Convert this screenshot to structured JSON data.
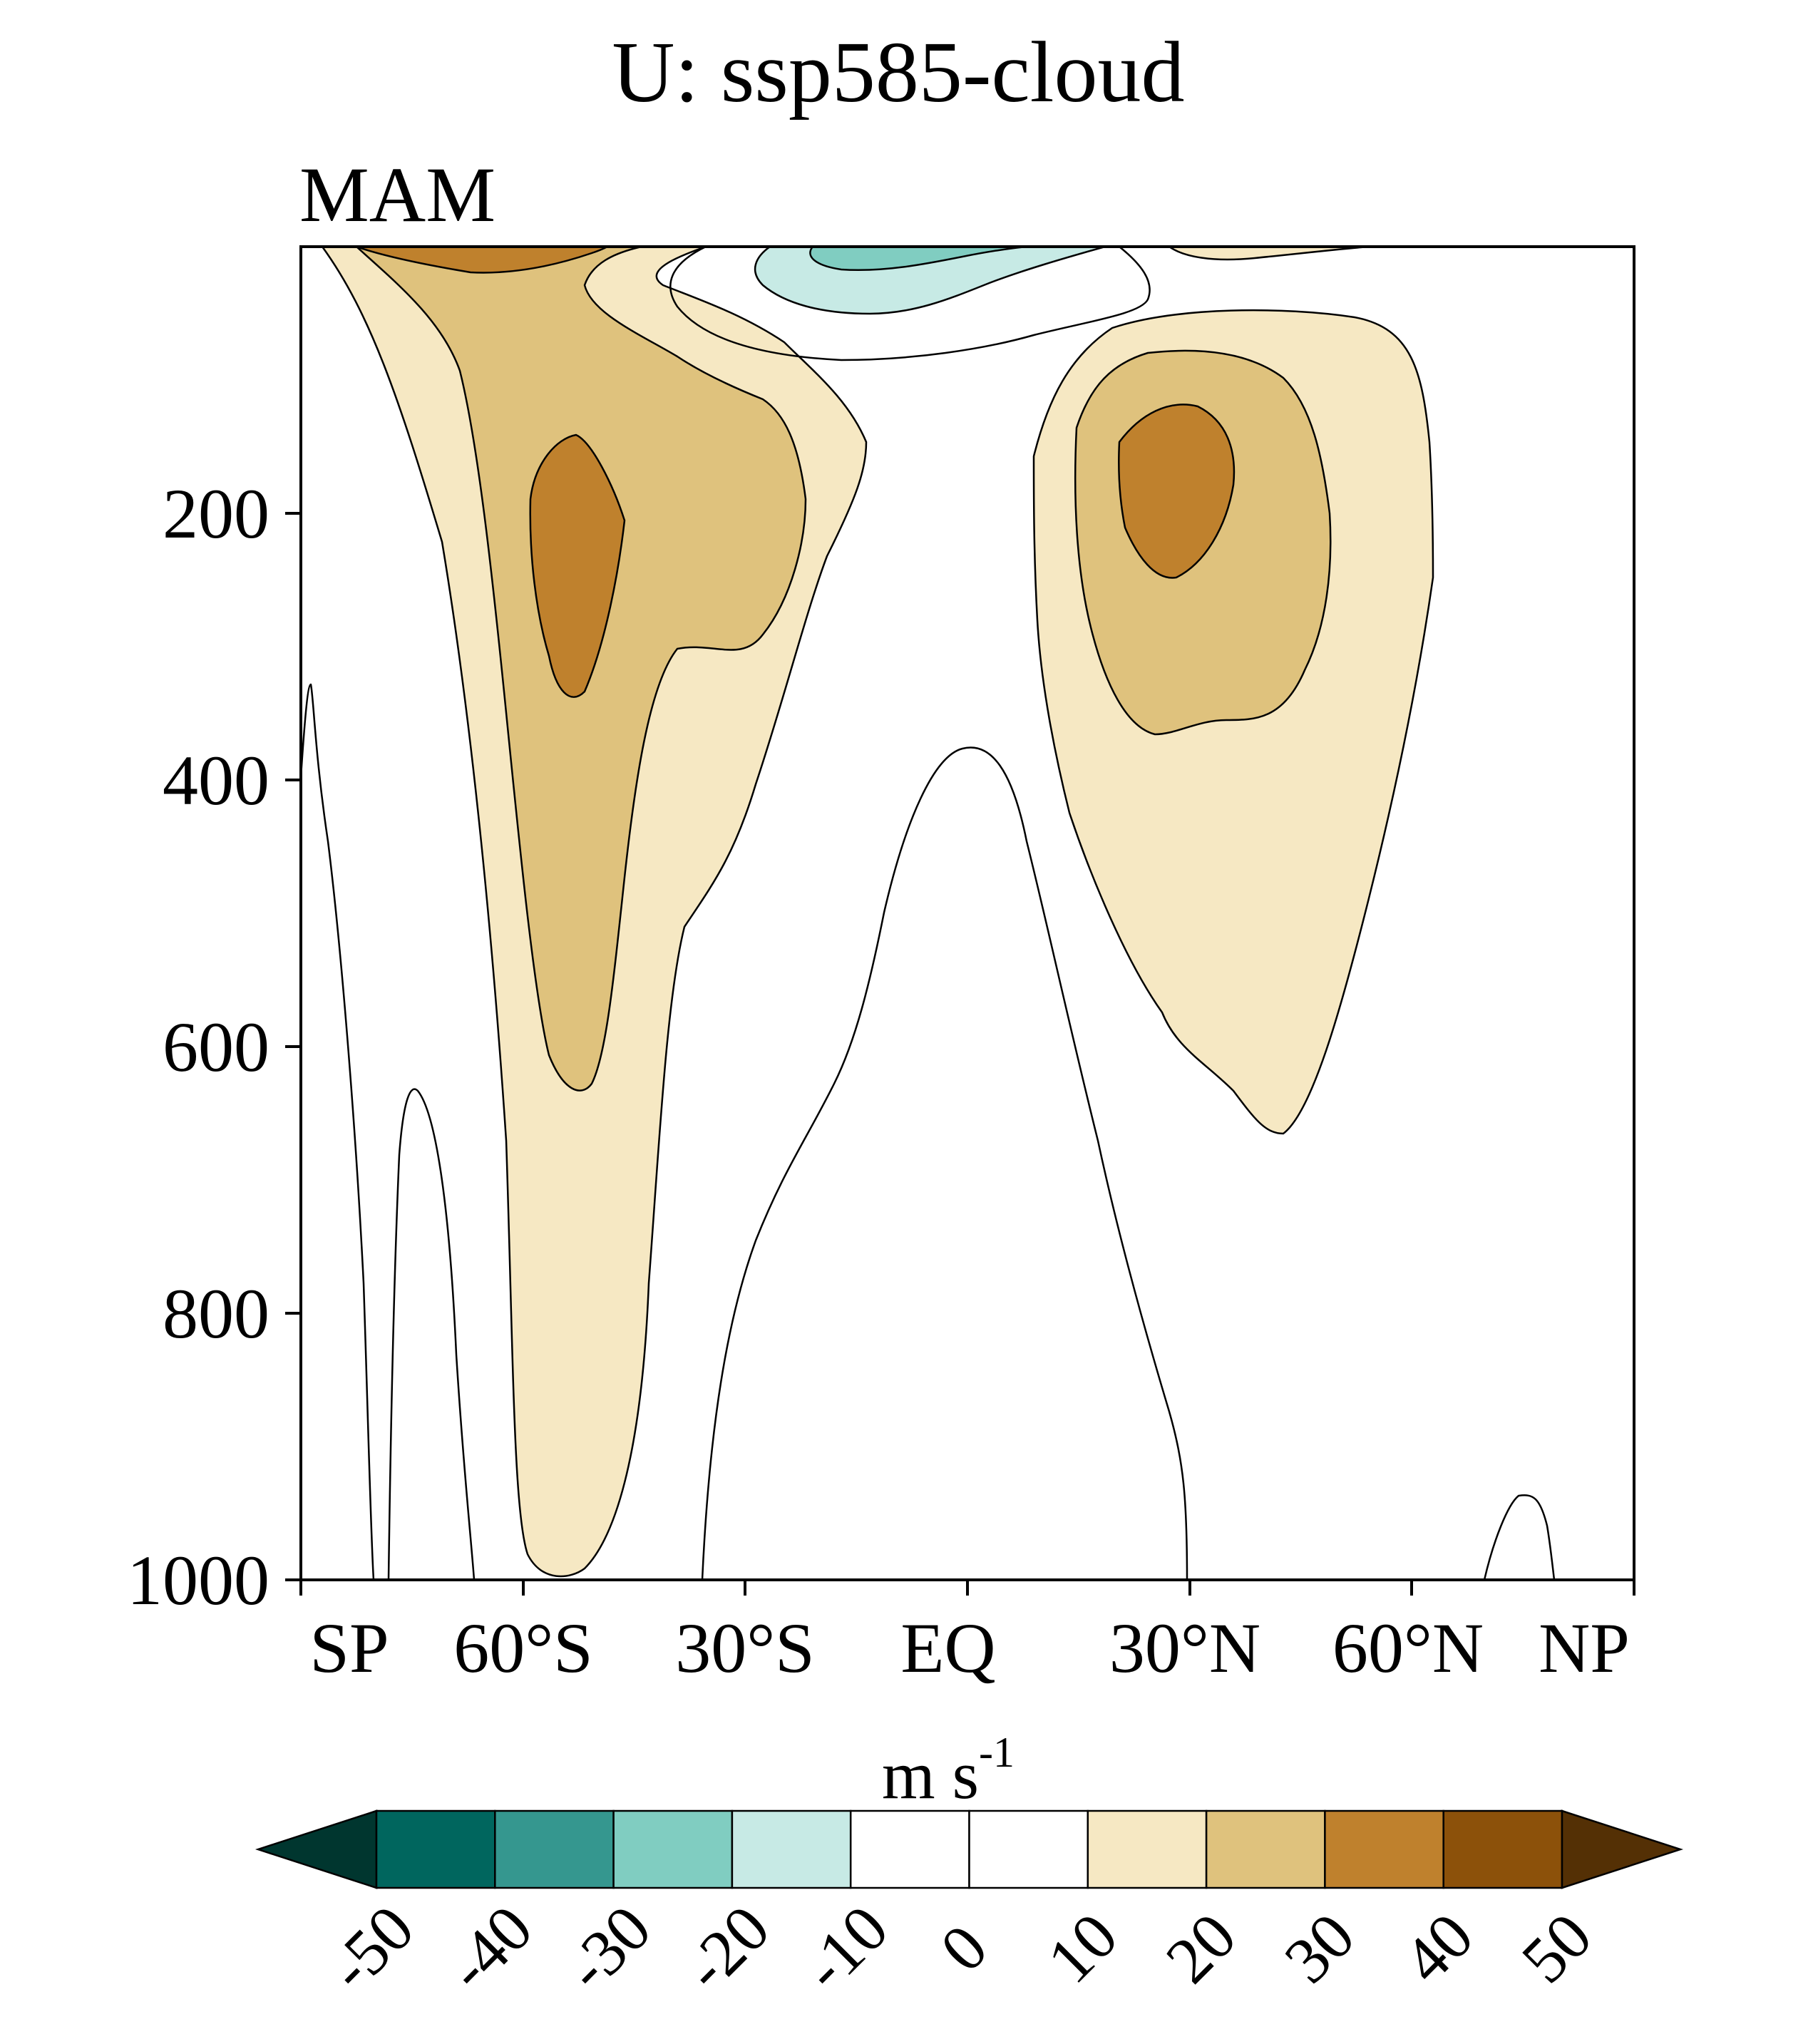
{
  "chart_data": {
    "type": "contour",
    "title": "U: ssp585-cloud",
    "panel_label": "MAM",
    "x_ticks": [
      "SP",
      "60°S",
      "30°S",
      "EQ",
      "30°N",
      "60°N",
      "NP"
    ],
    "x_tick_values": [
      -90,
      -60,
      -30,
      0,
      30,
      60,
      90
    ],
    "y_ticks": [
      "200",
      "400",
      "600",
      "800",
      "1000"
    ],
    "y_tick_values": [
      200,
      400,
      600,
      800,
      1000
    ],
    "xlim": [
      -90,
      90
    ],
    "ylim": [
      1000,
      0
    ],
    "colorbar": {
      "unit_base": "m s",
      "unit_exp": "-1",
      "levels": [
        "-50",
        "-40",
        "-30",
        "-20",
        "-10",
        "0",
        "10",
        "20",
        "30",
        "40",
        "50"
      ],
      "colors": [
        "#00362F",
        "#00665E",
        "#35978F",
        "#80CDC1",
        "#C7EAE5",
        "#FFFFFF",
        "#FFFFFF",
        "#F6E8C3",
        "#DFC27D",
        "#BF812D",
        "#8C510A",
        "#543005"
      ]
    },
    "features": [
      {
        "name": "SH subtropical jet core",
        "lat": -54,
        "pressure_hPa": 200,
        "u_max_range": "30-40"
      },
      {
        "name": "NH subtropical jet core",
        "lat": 30,
        "pressure_hPa": 170,
        "u_max_range": "30-40"
      },
      {
        "name": "Tropical upper easterlies",
        "lat": -5,
        "pressure_hPa": 10,
        "u_min_range": "-30--20"
      }
    ]
  }
}
